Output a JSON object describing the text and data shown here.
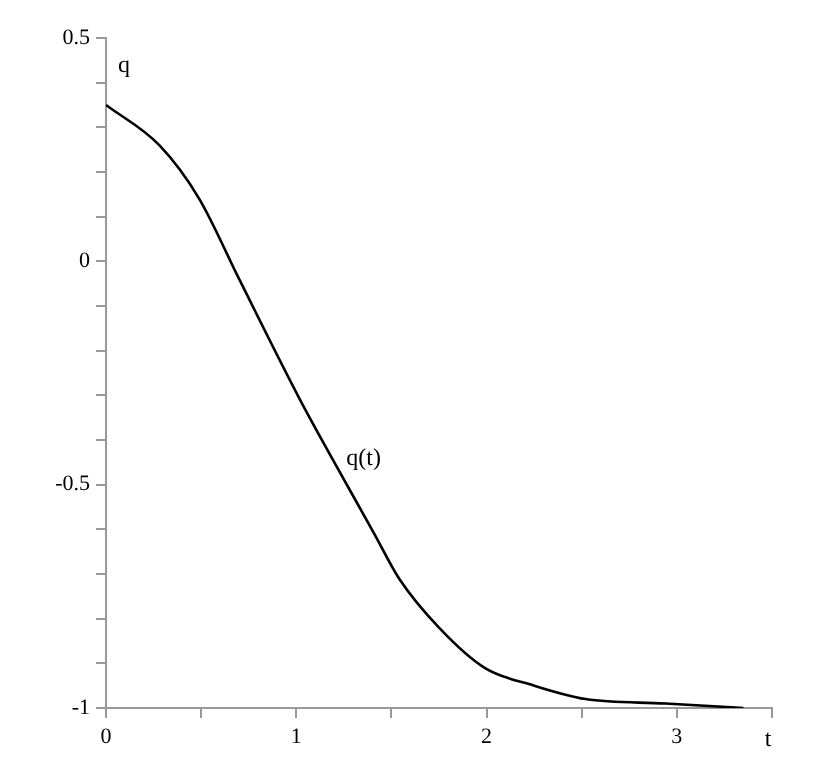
{
  "chart_data": {
    "type": "line",
    "xlabel": "t",
    "ylabel": "q",
    "series": [
      {
        "name": "q(t)",
        "color": "#000000",
        "x": [
          0,
          0.28,
          0.49,
          0.7,
          1.02,
          1.2,
          1.41,
          1.54,
          1.75,
          1.99,
          2.25,
          2.52,
          2.94,
          3.35
        ],
        "values": [
          0.35,
          0.26,
          0.14,
          -0.04,
          -0.31,
          -0.45,
          -0.61,
          -0.71,
          -0.82,
          -0.91,
          -0.95,
          -0.98,
          -0.99,
          -1.0
        ]
      }
    ],
    "xlim": [
      0,
      3.5
    ],
    "ylim": [
      -1,
      0.5
    ],
    "xticks": [
      0,
      {
        "value": 0.5,
        "label": null
      },
      1,
      {
        "value": 1.5,
        "label": null
      },
      2,
      {
        "value": 2.5,
        "label": null
      },
      3,
      {
        "value": 3.5,
        "label": null
      }
    ],
    "yticks": [
      -1,
      {
        "value": -0.9,
        "label": null
      },
      {
        "value": -0.8,
        "label": null
      },
      {
        "value": -0.7,
        "label": null
      },
      {
        "value": -0.6,
        "label": null
      },
      -0.5,
      {
        "value": -0.4,
        "label": null
      },
      {
        "value": -0.3,
        "label": null
      },
      {
        "value": -0.2,
        "label": null
      },
      {
        "value": -0.1,
        "label": null
      },
      0,
      {
        "value": 0.1,
        "label": null
      },
      {
        "value": 0.2,
        "label": null
      },
      {
        "value": 0.3,
        "label": null
      },
      {
        "value": 0.4,
        "label": null
      },
      0.5
    ],
    "grid": false,
    "legend": false,
    "marker": "none",
    "line_style": "solid"
  }
}
